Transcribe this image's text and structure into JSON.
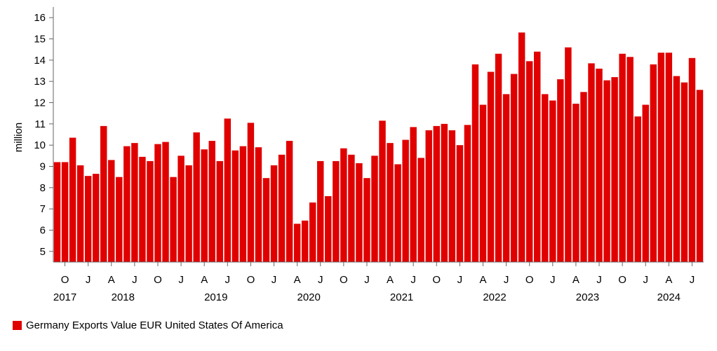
{
  "chart_data": {
    "type": "bar",
    "ylabel": "million",
    "ylim": [
      4.5,
      16.5
    ],
    "yticks": [
      5,
      6,
      7,
      8,
      9,
      10,
      11,
      12,
      13,
      14,
      15,
      16
    ],
    "grid": false,
    "legend_position": "bottom-left",
    "color": "#e00000",
    "x_tick_labels": [
      {
        "index": 1,
        "label": "O"
      },
      {
        "index": 4,
        "label": "J"
      },
      {
        "index": 7,
        "label": "A"
      },
      {
        "index": 10,
        "label": "J"
      },
      {
        "index": 13,
        "label": "O"
      },
      {
        "index": 16,
        "label": "J"
      },
      {
        "index": 19,
        "label": "A"
      },
      {
        "index": 22,
        "label": "J"
      },
      {
        "index": 25,
        "label": "O"
      },
      {
        "index": 28,
        "label": "J"
      },
      {
        "index": 31,
        "label": "A"
      },
      {
        "index": 34,
        "label": "J"
      },
      {
        "index": 37,
        "label": "O"
      },
      {
        "index": 40,
        "label": "J"
      },
      {
        "index": 43,
        "label": "A"
      },
      {
        "index": 46,
        "label": "J"
      },
      {
        "index": 49,
        "label": "O"
      },
      {
        "index": 52,
        "label": "J"
      },
      {
        "index": 55,
        "label": "A"
      },
      {
        "index": 58,
        "label": "J"
      },
      {
        "index": 61,
        "label": "O"
      },
      {
        "index": 64,
        "label": "J"
      },
      {
        "index": 67,
        "label": "A"
      },
      {
        "index": 70,
        "label": "J"
      },
      {
        "index": 73,
        "label": "O"
      },
      {
        "index": 76,
        "label": "J"
      },
      {
        "index": 79,
        "label": "A"
      },
      {
        "index": 82,
        "label": "J"
      }
    ],
    "year_labels": [
      {
        "index": 1,
        "label": "2017"
      },
      {
        "index": 8.5,
        "label": "2018"
      },
      {
        "index": 20.5,
        "label": "2019"
      },
      {
        "index": 32.5,
        "label": "2020"
      },
      {
        "index": 44.5,
        "label": "2021"
      },
      {
        "index": 56.5,
        "label": "2022"
      },
      {
        "index": 68.5,
        "label": "2023"
      },
      {
        "index": 79,
        "label": "2024"
      }
    ],
    "series": [
      {
        "name": "Germany Exports Value EUR United States Of America",
        "values": [
          9.2,
          9.2,
          10.35,
          9.05,
          8.55,
          8.65,
          10.9,
          9.3,
          8.5,
          9.95,
          10.1,
          9.45,
          9.25,
          10.05,
          10.15,
          8.5,
          9.5,
          9.05,
          10.6,
          9.8,
          10.2,
          9.25,
          11.25,
          9.75,
          9.95,
          11.05,
          9.9,
          8.45,
          9.05,
          9.55,
          10.2,
          6.3,
          6.45,
          7.3,
          9.25,
          7.6,
          9.25,
          9.85,
          9.55,
          9.15,
          8.45,
          9.5,
          11.15,
          10.1,
          9.1,
          10.25,
          10.85,
          9.4,
          10.7,
          10.9,
          11.0,
          10.7,
          10.0,
          10.95,
          13.8,
          11.9,
          13.45,
          14.3,
          12.4,
          13.35,
          15.3,
          13.95,
          14.4,
          12.4,
          12.1,
          13.1,
          14.6,
          11.95,
          12.5,
          13.85,
          13.6,
          13.05,
          13.2,
          14.3,
          14.15,
          11.35,
          11.9,
          13.8,
          14.35,
          14.35,
          13.25,
          12.95,
          14.1,
          12.6
        ]
      }
    ]
  }
}
